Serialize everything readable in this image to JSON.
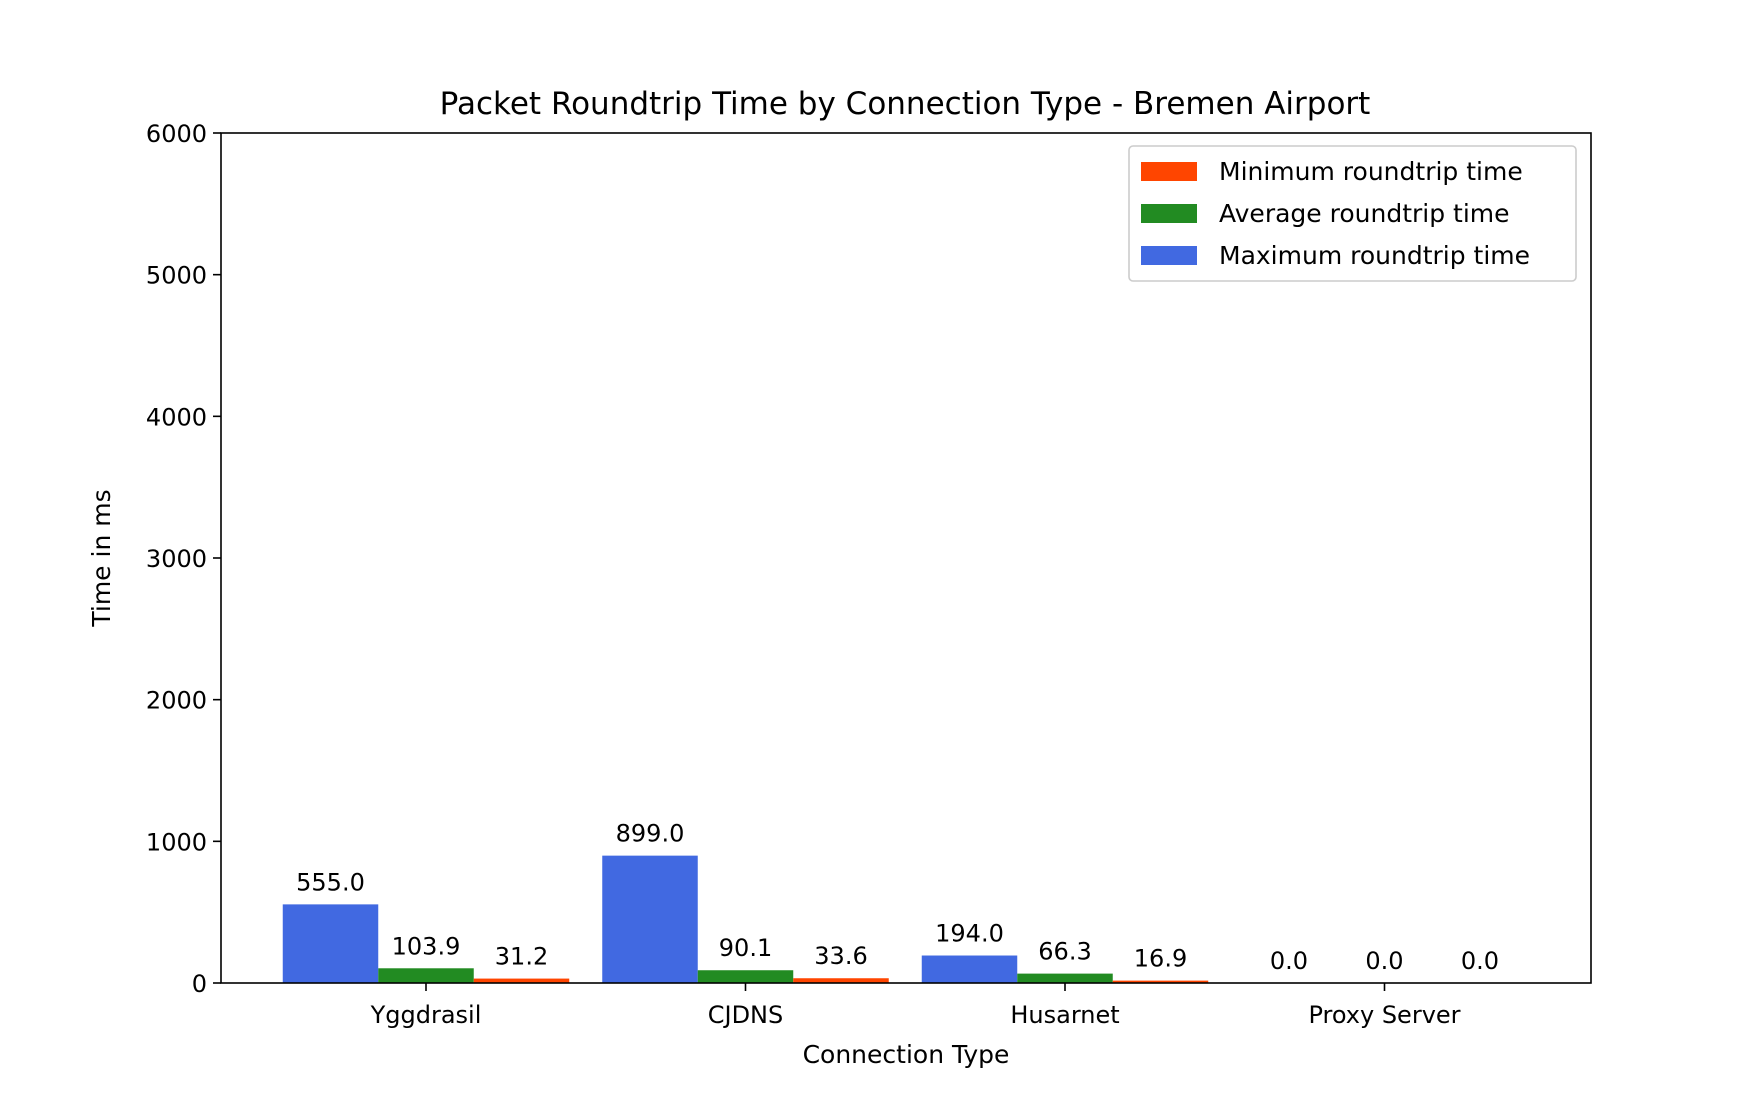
{
  "chart_data": {
    "type": "bar",
    "title": "Packet Roundtrip Time by Connection Type - Bremen Airport",
    "xlabel": "Connection Type",
    "ylabel": "Time in ms",
    "ylim": [
      0,
      6000
    ],
    "yticks": [
      "0",
      "1000",
      "2000",
      "3000",
      "4000",
      "5000",
      "6000"
    ],
    "categories": [
      "Yggdrasil",
      "CJDNS",
      "Husarnet",
      "Proxy Server"
    ],
    "series": [
      {
        "name": "Maximum roundtrip time",
        "color": "#4169e1",
        "values": [
          555.0,
          899.0,
          194.0,
          0.0
        ],
        "labels": [
          "555.0",
          "899.0",
          "194.0",
          "0.0"
        ]
      },
      {
        "name": "Average roundtrip time",
        "color": "#228b22",
        "values": [
          103.9,
          90.1,
          66.3,
          0.0
        ],
        "labels": [
          "103.9",
          "90.1",
          "66.3",
          "0.0"
        ]
      },
      {
        "name": "Minimum roundtrip time",
        "color": "#ff4500",
        "values": [
          31.2,
          33.6,
          16.9,
          0.0
        ],
        "labels": [
          "31.2",
          "33.6",
          "16.9",
          "0.0"
        ]
      }
    ],
    "legend": {
      "position": "top-right",
      "order": [
        "Minimum roundtrip time",
        "Average roundtrip time",
        "Maximum roundtrip time"
      ]
    },
    "grid": false
  }
}
